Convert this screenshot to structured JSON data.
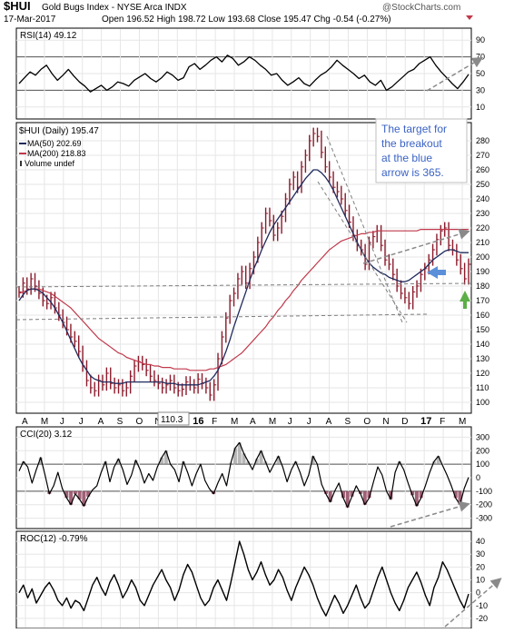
{
  "header": {
    "symbol": "$HUI",
    "name": "Gold Bugs Index - NYSE Arca INDX",
    "date": "17-Mar-2017",
    "quote": "Open 196.52  High 198.72  Low 193.68  Close 195.47  Chg -0.54 (-0.27%)",
    "watermark": "@StockCharts.com"
  },
  "colors": {
    "price_bars": "#8b1a2b",
    "ma50": "#1f2a5c",
    "ma200": "#c0394b",
    "annotation_text": "#3b63c4",
    "cci_fill": "#8a3a55",
    "arrow_blue": "#5b8fd9",
    "arrow_green": "#5cae47",
    "grid": "#e6e6e6"
  },
  "chart_data": [
    {
      "type": "line",
      "name_label": "RSI(14) 49.12",
      "ylim": [
        0,
        100
      ],
      "y_ticks": [
        10,
        30,
        50,
        70,
        90
      ],
      "reference_lines": [
        30,
        70
      ],
      "last_value": 49.12,
      "series": [
        {
          "name": "RSI(14)",
          "values": [
            38,
            45,
            52,
            48,
            55,
            60,
            50,
            42,
            48,
            55,
            47,
            40,
            35,
            28,
            32,
            36,
            30,
            34,
            40,
            38,
            35,
            42,
            46,
            50,
            44,
            40,
            45,
            52,
            48,
            42,
            45,
            58,
            62,
            55,
            60,
            66,
            70,
            64,
            72,
            68,
            60,
            64,
            70,
            66,
            60,
            55,
            48,
            50,
            42,
            36,
            40,
            45,
            38,
            35,
            42,
            48,
            52,
            58,
            66,
            60,
            55,
            50,
            44,
            48,
            40,
            36,
            42,
            30,
            34,
            40,
            46,
            52,
            55,
            62,
            66,
            70,
            60,
            52,
            45,
            38,
            32,
            40,
            49
          ]
        }
      ]
    },
    {
      "type": "line",
      "name_label": "$HUI (Daily) 195.47",
      "legend": [
        "MA(50) 202.69",
        "MA(200) 218.83",
        "Volume undef"
      ],
      "ylim": [
        95,
        290
      ],
      "y_ticks": [
        100,
        110,
        120,
        130,
        140,
        150,
        160,
        170,
        180,
        190,
        200,
        210,
        220,
        230,
        240,
        250,
        260,
        270,
        280
      ],
      "x_ticks": [
        "A",
        "M",
        "J",
        "J",
        "A",
        "S",
        "O",
        "N",
        "D",
        "16",
        "F",
        "M",
        "A",
        "M",
        "J",
        "J",
        "A",
        "S",
        "O",
        "N",
        "D",
        "17",
        "F",
        "M"
      ],
      "callout": "110.3",
      "annotation": [
        "The target for",
        "the breakout",
        "at the blue",
        "arrow is 365."
      ],
      "series": [
        {
          "name": "$HUI",
          "values": [
            176,
            182,
            178,
            185,
            180,
            175,
            170,
            168,
            172,
            165,
            160,
            155,
            150,
            145,
            142,
            135,
            125,
            115,
            110,
            108,
            115,
            112,
            120,
            113,
            110,
            112,
            108,
            110,
            118,
            125,
            128,
            126,
            122,
            118,
            115,
            113,
            110,
            112,
            115,
            110,
            108,
            109,
            114,
            112,
            110,
            116,
            113,
            110,
            105,
            112,
            130,
            145,
            158,
            170,
            175,
            185,
            190,
            182,
            192,
            200,
            210,
            220,
            230,
            225,
            215,
            220,
            228,
            240,
            250,
            255,
            248,
            262,
            270,
            280,
            285,
            283,
            272,
            262,
            255,
            248,
            245,
            240,
            232,
            224,
            215,
            208,
            205,
            195,
            210,
            214,
            218,
            208,
            198,
            195,
            188,
            180,
            175,
            172,
            168,
            176,
            180,
            188,
            192,
            198,
            205,
            212,
            218,
            220,
            208,
            205,
            198,
            192,
            185,
            195
          ]
        },
        {
          "name": "MA(50)",
          "values": [
            170,
            174,
            177,
            178,
            178,
            177,
            175,
            172,
            169,
            165,
            160,
            155,
            149,
            143,
            137,
            131,
            126,
            122,
            118,
            116,
            115,
            114,
            114,
            114,
            113,
            113,
            113,
            114,
            114,
            114,
            114,
            114,
            114,
            114,
            114,
            114,
            114,
            113,
            113,
            113,
            112,
            112,
            112,
            112,
            112,
            112,
            113,
            114,
            115,
            118,
            122,
            128,
            135,
            143,
            152,
            160,
            168,
            176,
            184,
            192,
            198,
            205,
            211,
            217,
            222,
            226,
            230,
            234,
            238,
            242,
            246,
            250,
            254,
            257,
            260,
            260,
            258,
            255,
            251,
            246,
            240,
            234,
            228,
            222,
            216,
            210,
            205,
            200,
            196,
            193,
            191,
            189,
            188,
            186,
            185,
            184,
            183,
            183,
            184,
            186,
            188,
            190,
            192,
            195,
            198,
            200,
            202,
            204,
            205,
            205,
            204,
            203,
            203,
            203
          ]
        },
        {
          "name": "MA(200)",
          "values": [
            175,
            176,
            177,
            178,
            178,
            178,
            177,
            176,
            175,
            173,
            171,
            169,
            167,
            165,
            162,
            159,
            156,
            153,
            150,
            147,
            144,
            142,
            140,
            138,
            136,
            134,
            133,
            131,
            130,
            129,
            128,
            127,
            126,
            126,
            125,
            125,
            124,
            124,
            124,
            123,
            123,
            123,
            123,
            122,
            122,
            122,
            122,
            122,
            123,
            123,
            124,
            125,
            126,
            128,
            130,
            132,
            134,
            137,
            140,
            143,
            146,
            149,
            152,
            156,
            159,
            163,
            166,
            170,
            173,
            177,
            180,
            184,
            187,
            190,
            193,
            196,
            199,
            202,
            205,
            207,
            209,
            211,
            212,
            213,
            214,
            215,
            216,
            216,
            217,
            217,
            218,
            218,
            218,
            218,
            218,
            218,
            218,
            218,
            218,
            218,
            218,
            219,
            219,
            219,
            219,
            219,
            219,
            219,
            219,
            219,
            219,
            219,
            219,
            219
          ]
        }
      ]
    },
    {
      "type": "line",
      "name_label": "CCI(20) 3.12",
      "ylim": [
        -350,
        350
      ],
      "y_ticks": [
        -300,
        -200,
        -100,
        0,
        100,
        200,
        300
      ],
      "reference_lines": [
        -100,
        100
      ],
      "last_value": 3.12,
      "series": [
        {
          "name": "CCI(20)",
          "values": [
            50,
            120,
            80,
            -40,
            60,
            150,
            20,
            -120,
            -60,
            40,
            -80,
            -150,
            -200,
            -120,
            -160,
            -210,
            -140,
            -90,
            -60,
            40,
            120,
            -30,
            80,
            140,
            60,
            -50,
            20,
            130,
            60,
            -40,
            30,
            -20,
            80,
            150,
            200,
            100,
            60,
            -30,
            120,
            40,
            -60,
            30,
            100,
            -20,
            -80,
            -120,
            -40,
            30,
            -60,
            110,
            220,
            260,
            180,
            120,
            60,
            140,
            200,
            120,
            40,
            100,
            160,
            80,
            -30,
            60,
            120,
            40,
            -60,
            20,
            160,
            100,
            -50,
            -120,
            -180,
            -100,
            -40,
            -150,
            -220,
            -140,
            -60,
            -120,
            -200,
            -150,
            -30,
            80,
            20,
            -100,
            -160,
            40,
            120,
            60,
            -40,
            -130,
            -210,
            -150,
            -60,
            40,
            120,
            160,
            90,
            20,
            -60,
            -150,
            -200,
            -80,
            3
          ]
        }
      ]
    },
    {
      "type": "line",
      "name_label": "ROC(12) -0.79%",
      "ylim": [
        -25,
        45
      ],
      "y_ticks": [
        -20,
        -10,
        0,
        10,
        20,
        30,
        40
      ],
      "last_value": -0.79,
      "series": [
        {
          "name": "ROC(12)",
          "values": [
            0,
            6,
            -4,
            3,
            -8,
            -2,
            4,
            8,
            2,
            -6,
            -10,
            -4,
            -12,
            -6,
            -8,
            -14,
            -4,
            6,
            12,
            4,
            -2,
            8,
            14,
            6,
            -4,
            2,
            10,
            4,
            -6,
            -10,
            -2,
            6,
            12,
            18,
            10,
            4,
            -6,
            2,
            14,
            22,
            16,
            6,
            -4,
            -10,
            -6,
            4,
            10,
            2,
            -6,
            8,
            24,
            40,
            30,
            18,
            10,
            16,
            24,
            14,
            6,
            10,
            18,
            12,
            2,
            -6,
            4,
            12,
            20,
            14,
            6,
            -4,
            -12,
            -18,
            -10,
            -2,
            -8,
            -16,
            -10,
            -2,
            6,
            -4,
            -12,
            -8,
            2,
            12,
            20,
            10,
            0,
            -8,
            -14,
            -6,
            4,
            10,
            16,
            8,
            -2,
            -10,
            4,
            12,
            24,
            18,
            10,
            2,
            -6,
            -12,
            -1
          ]
        }
      ]
    }
  ]
}
